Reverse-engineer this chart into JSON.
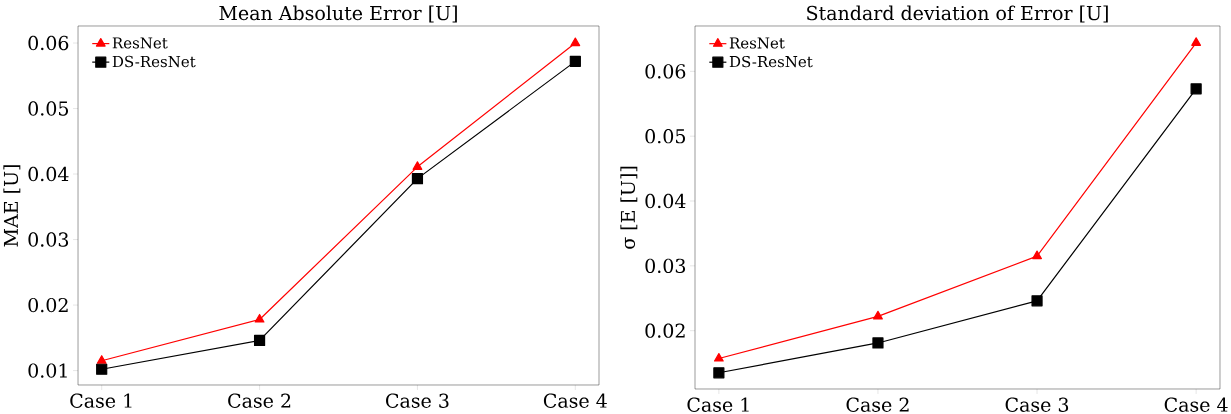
{
  "chart_data": [
    {
      "type": "line",
      "title": "Mean Absolute Error [U]",
      "ylabel": "MAE [U]",
      "categories": [
        "Case 1",
        "Case 2",
        "Case 3",
        "Case 4"
      ],
      "series": [
        {
          "name": "ResNet",
          "color": "#ff0000",
          "marker": "triangle",
          "values": [
            0.0115,
            0.0178,
            0.0411,
            0.06
          ]
        },
        {
          "name": "DS-ResNet",
          "color": "#000000",
          "marker": "square",
          "values": [
            0.0102,
            0.0146,
            0.0393,
            0.0572
          ]
        }
      ],
      "ylim": [
        0.0078,
        0.0626
      ],
      "yticks": [
        0.01,
        0.02,
        0.03,
        0.04,
        0.05,
        0.06
      ],
      "legend": "top left",
      "grid": false
    },
    {
      "type": "line",
      "title": "Standard deviation of Error [U]",
      "ylabel": "σ [E [U]]",
      "categories": [
        "Case 1",
        "Case 2",
        "Case 3",
        "Case 4"
      ],
      "series": [
        {
          "name": "ResNet",
          "color": "#ff0000",
          "marker": "triangle",
          "values": [
            0.0157,
            0.0222,
            0.0315,
            0.0644
          ]
        },
        {
          "name": "DS-ResNet",
          "color": "#000000",
          "marker": "square",
          "values": [
            0.0135,
            0.0181,
            0.0246,
            0.0573
          ]
        }
      ],
      "ylim": [
        0.011,
        0.067
      ],
      "yticks": [
        0.02,
        0.03,
        0.04,
        0.05,
        0.06
      ],
      "legend": "top left",
      "grid": false
    }
  ]
}
